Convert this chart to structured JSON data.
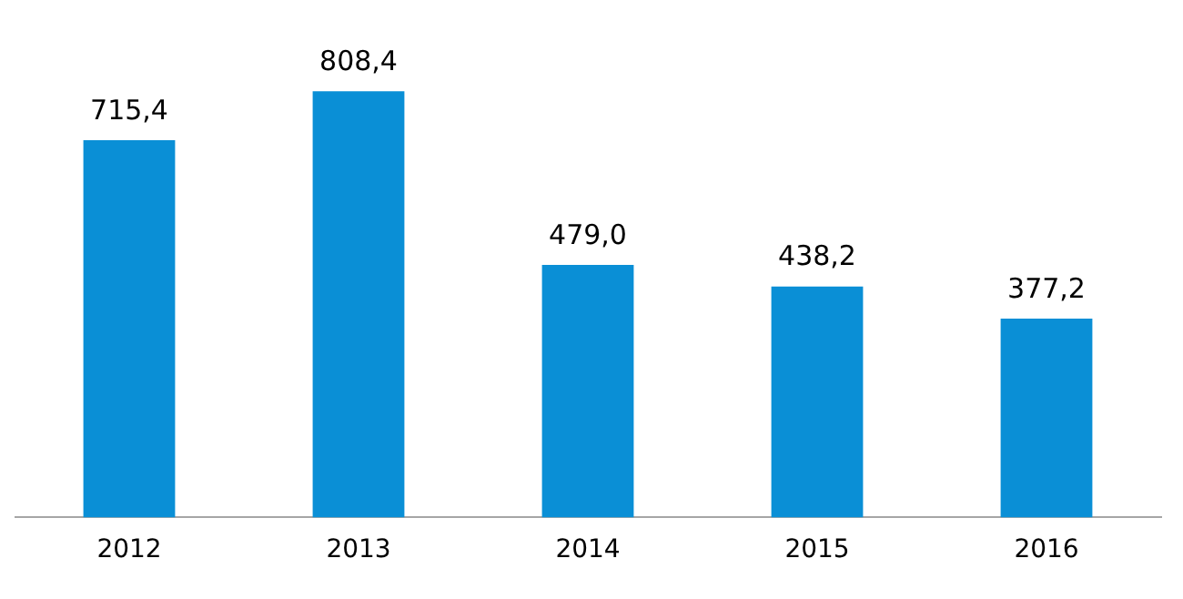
{
  "chart_data": {
    "type": "bar",
    "categories": [
      "2012",
      "2013",
      "2014",
      "2015",
      "2016"
    ],
    "values": [
      715.4,
      808.4,
      479.0,
      438.2,
      377.2
    ],
    "value_labels": [
      "715,4",
      "808,4",
      "479,0",
      "438,2",
      "377,2"
    ],
    "color": "#0a8fd6",
    "grid": false,
    "legend": false
  }
}
